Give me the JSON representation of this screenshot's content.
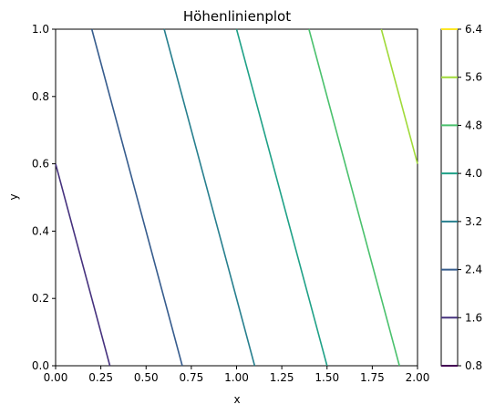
{
  "chart_data": {
    "type": "contour",
    "title": "Höhenlinienplot",
    "xlabel": "x",
    "ylabel": "y",
    "xlim": [
      0.0,
      2.0
    ],
    "ylim": [
      0.0,
      1.0
    ],
    "x_ticks": [
      "0.00",
      "0.25",
      "0.50",
      "0.75",
      "1.00",
      "1.25",
      "1.50",
      "1.75",
      "2.00"
    ],
    "x_tick_values": [
      0,
      0.25,
      0.5,
      0.75,
      1.0,
      1.25,
      1.5,
      1.75,
      2.0
    ],
    "y_ticks": [
      "0.0",
      "0.2",
      "0.4",
      "0.6",
      "0.8",
      "1.0"
    ],
    "y_tick_values": [
      0,
      0.2,
      0.4,
      0.6,
      0.8,
      1.0
    ],
    "colorbar": {
      "ticks": [
        "0.8",
        "1.6",
        "2.4",
        "3.2",
        "4.0",
        "4.8",
        "5.6",
        "6.4"
      ],
      "range": [
        0.8,
        6.4
      ]
    },
    "contours": [
      {
        "level": 1.6,
        "color": "#46327e",
        "points": [
          [
            0.0,
            0.6
          ],
          [
            0.3,
            0.0
          ]
        ]
      },
      {
        "level": 2.4,
        "color": "#365c8d",
        "points": [
          [
            0.2,
            1.0
          ],
          [
            0.7,
            0.0
          ]
        ]
      },
      {
        "level": 3.2,
        "color": "#277f8e",
        "points": [
          [
            0.6,
            1.0
          ],
          [
            1.1,
            0.0
          ]
        ]
      },
      {
        "level": 4.0,
        "color": "#1fa187",
        "points": [
          [
            1.0,
            1.0
          ],
          [
            1.5,
            0.0
          ]
        ]
      },
      {
        "level": 4.8,
        "color": "#4ac16d",
        "points": [
          [
            1.4,
            1.0
          ],
          [
            1.9,
            0.0
          ]
        ]
      },
      {
        "level": 5.6,
        "color": "#a0da39",
        "points": [
          [
            1.8,
            1.0
          ],
          [
            2.0,
            0.6
          ]
        ]
      }
    ],
    "level_colors": [
      "#440154",
      "#46327e",
      "#365c8d",
      "#277f8e",
      "#1fa187",
      "#4ac16d",
      "#a0da39",
      "#fde725"
    ],
    "grid": false
  }
}
